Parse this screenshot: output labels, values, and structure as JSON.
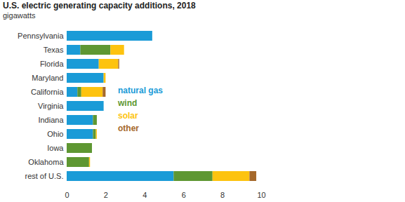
{
  "chart_data": {
    "type": "bar",
    "title": "U.S. electric generating capacity additions, 2018",
    "subtitle": "gigawatts",
    "orientation": "horizontal",
    "stacked": true,
    "legend": "right",
    "categories": [
      "Pennsylvania",
      "Texas",
      "Florida",
      "Maryland",
      "California",
      "Virginia",
      "Indiana",
      "Ohio",
      "Iowa",
      "Oklahoma",
      "rest of U.S."
    ],
    "series": [
      {
        "name": "natural gas",
        "color": "#1a9bd7",
        "values": [
          4.4,
          0.7,
          1.65,
          1.9,
          0.55,
          1.9,
          1.35,
          1.35,
          0,
          0,
          5.5
        ]
      },
      {
        "name": "wind",
        "color": "#5e9732",
        "values": [
          0,
          1.55,
          0,
          0,
          0.2,
          0,
          0.2,
          0.15,
          1.3,
          1.15,
          2.0
        ]
      },
      {
        "name": "solar",
        "color": "#fdc30f",
        "values": [
          0,
          0.7,
          1.0,
          0.1,
          1.1,
          0,
          0,
          0.05,
          0,
          0.05,
          1.9
        ]
      },
      {
        "name": "other",
        "color": "#a5682a",
        "values": [
          0,
          0,
          0.05,
          0,
          0.15,
          0,
          0,
          0,
          0,
          0,
          0.35
        ]
      }
    ],
    "xlim": [
      0,
      10
    ],
    "xticks": [
      0,
      2,
      4,
      6,
      8,
      10
    ],
    "grid": false
  }
}
